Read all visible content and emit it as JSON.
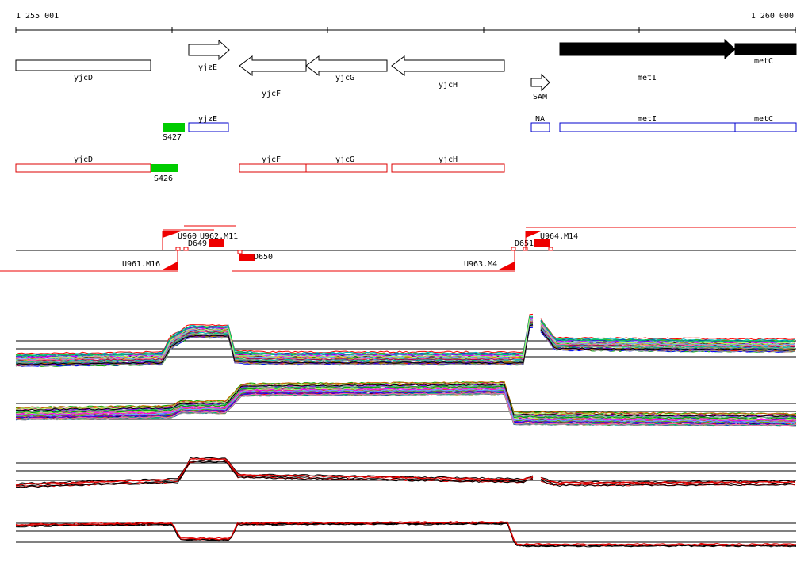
{
  "ruler": {
    "start_label": "1 255 001",
    "end_label": "1 260 000"
  },
  "genes_top": [
    {
      "label": "yjcD",
      "strand": "none",
      "fill": "white"
    },
    {
      "label": "yjzE",
      "strand": "forward",
      "fill": "white"
    },
    {
      "label": "yjcF",
      "strand": "reverse",
      "fill": "white"
    },
    {
      "label": "yjcG",
      "strand": "reverse",
      "fill": "white"
    },
    {
      "label": "yjcH",
      "strand": "reverse",
      "fill": "white"
    },
    {
      "label": "SAM",
      "strand": "forward",
      "fill": "white"
    },
    {
      "label": "metI",
      "strand": "forward",
      "fill": "black"
    },
    {
      "label": "metC",
      "strand": "forward",
      "fill": "black"
    }
  ],
  "forward_track": [
    {
      "label": "S427",
      "type": "green-feature"
    },
    {
      "label": "yjzE",
      "type": "blue-box"
    },
    {
      "label": "NA",
      "type": "blue-box"
    },
    {
      "label": "metI",
      "type": "blue-box"
    },
    {
      "label": "metC",
      "type": "blue-box"
    }
  ],
  "reverse_track": [
    {
      "label": "yjcD",
      "type": "red-box"
    },
    {
      "label": "S426",
      "type": "green-feature"
    },
    {
      "label": "yjcF",
      "type": "red-box"
    },
    {
      "label": "yjcG",
      "type": "red-box"
    },
    {
      "label": "yjcH",
      "type": "red-box"
    }
  ],
  "transcription_units": [
    {
      "label": "U960",
      "strand": "forward"
    },
    {
      "label": "U962.M11",
      "strand": "forward"
    },
    {
      "label": "D649",
      "strand": "forward"
    },
    {
      "label": "U961.M16",
      "strand": "reverse"
    },
    {
      "label": "D650",
      "strand": "reverse"
    },
    {
      "label": "U963.M4",
      "strand": "reverse"
    },
    {
      "label": "D651",
      "strand": "forward"
    },
    {
      "label": "U964.M14",
      "strand": "forward"
    }
  ],
  "colors": {
    "gene_blue": "#0000cc",
    "gene_red": "#dd0000",
    "feature_green": "#00cc00",
    "tu_red": "#ee0000",
    "profile_black": "#000000",
    "profile_red": "#dd0000"
  },
  "profile_panels": [
    {
      "kind": "multi-condition",
      "strand": "forward"
    },
    {
      "kind": "multi-condition",
      "strand": "reverse"
    },
    {
      "kind": "summary",
      "strand": "forward"
    },
    {
      "kind": "summary",
      "strand": "reverse"
    }
  ]
}
